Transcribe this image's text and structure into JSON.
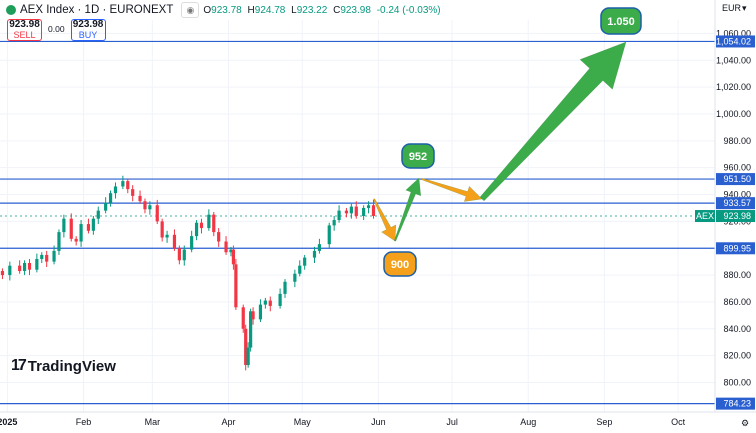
{
  "header": {
    "symbol": "AEX Index · 1D · EURONEXT",
    "ohlc": [
      {
        "k": "O",
        "v": "923.78"
      },
      {
        "k": "H",
        "v": "924.78"
      },
      {
        "k": "L",
        "v": "923.22"
      },
      {
        "k": "C",
        "v": "923.98"
      }
    ],
    "change": "-0.24 (-0.03%)",
    "sell_price": "923.98",
    "sell_label": "SELL",
    "spread": "0.00",
    "buy_price": "923.98",
    "buy_label": "BUY",
    "currency": "EUR",
    "logo_text": "TradingView"
  },
  "colors": {
    "up": "#089981",
    "down": "#f23645",
    "level_line": "#2a5fd0",
    "green_arrow": "#3cab4a",
    "orange_arrow": "#f5a01a"
  },
  "chart_data": {
    "type": "candlestick",
    "symbol": "AEX",
    "ylim": [
      778,
      1070
    ],
    "y_ticks": [
      800,
      820,
      840,
      860,
      880,
      900,
      920,
      940,
      960,
      980,
      1000,
      1020,
      1040,
      1060
    ],
    "y_tick_labels": [
      "800.00",
      "820.00",
      "840.00",
      "860.00",
      "880.00",
      "900.00",
      "920.00",
      "940.00",
      "960.00",
      "980.00",
      "1,000.00",
      "1,020.00",
      "1,040.00",
      "1,060.00"
    ],
    "x_ticks": [
      "2025",
      "Feb",
      "Mar",
      "Apr",
      "May",
      "Jun",
      "Jul",
      "Aug",
      "Sep",
      "Oct"
    ],
    "x_tick_dates": [
      "2025-01-01",
      "2025-02-01",
      "2025-03-01",
      "2025-04-01",
      "2025-05-01",
      "2025-06-01",
      "2025-07-01",
      "2025-08-01",
      "2025-09-01",
      "2025-10-01"
    ],
    "x_range": [
      "2024-12-29",
      "2025-10-16"
    ],
    "horizontal_levels": [
      {
        "value": 1054.02,
        "label": "1,054.02"
      },
      {
        "value": 951.5,
        "label": "951.50"
      },
      {
        "value": 933.57,
        "label": "933.57"
      },
      {
        "value": 899.95,
        "label": "899.95"
      },
      {
        "value": 784.23,
        "label": "784.23"
      }
    ],
    "current_price": {
      "name": "AEX",
      "value": 923.98,
      "label": "923.98"
    },
    "closes": [
      {
        "d": "2024-12-30",
        "c": 880
      },
      {
        "d": "2025-01-02",
        "c": 887
      },
      {
        "d": "2025-01-06",
        "c": 883
      },
      {
        "d": "2025-01-08",
        "c": 889
      },
      {
        "d": "2025-01-10",
        "c": 884
      },
      {
        "d": "2025-01-13",
        "c": 892
      },
      {
        "d": "2025-01-15",
        "c": 895
      },
      {
        "d": "2025-01-17",
        "c": 890
      },
      {
        "d": "2025-01-20",
        "c": 898
      },
      {
        "d": "2025-01-22",
        "c": 912
      },
      {
        "d": "2025-01-24",
        "c": 922
      },
      {
        "d": "2025-01-27",
        "c": 907
      },
      {
        "d": "2025-01-29",
        "c": 905
      },
      {
        "d": "2025-01-31",
        "c": 918
      },
      {
        "d": "2025-02-03",
        "c": 913
      },
      {
        "d": "2025-02-05",
        "c": 922
      },
      {
        "d": "2025-02-07",
        "c": 928
      },
      {
        "d": "2025-02-10",
        "c": 934
      },
      {
        "d": "2025-02-12",
        "c": 941
      },
      {
        "d": "2025-02-14",
        "c": 946
      },
      {
        "d": "2025-02-17",
        "c": 950
      },
      {
        "d": "2025-02-19",
        "c": 944
      },
      {
        "d": "2025-02-21",
        "c": 939
      },
      {
        "d": "2025-02-24",
        "c": 935
      },
      {
        "d": "2025-02-26",
        "c": 929
      },
      {
        "d": "2025-02-28",
        "c": 932
      },
      {
        "d": "2025-03-03",
        "c": 920
      },
      {
        "d": "2025-03-05",
        "c": 908
      },
      {
        "d": "2025-03-07",
        "c": 910
      },
      {
        "d": "2025-03-10",
        "c": 900
      },
      {
        "d": "2025-03-12",
        "c": 891
      },
      {
        "d": "2025-03-14",
        "c": 899
      },
      {
        "d": "2025-03-17",
        "c": 909
      },
      {
        "d": "2025-03-19",
        "c": 919
      },
      {
        "d": "2025-03-21",
        "c": 915
      },
      {
        "d": "2025-03-24",
        "c": 925
      },
      {
        "d": "2025-03-26",
        "c": 912
      },
      {
        "d": "2025-03-28",
        "c": 905
      },
      {
        "d": "2025-03-31",
        "c": 897
      },
      {
        "d": "2025-04-02",
        "c": 899
      },
      {
        "d": "2025-04-03",
        "c": 888
      },
      {
        "d": "2025-04-04",
        "c": 856
      },
      {
        "d": "2025-04-07",
        "c": 840
      },
      {
        "d": "2025-04-08",
        "c": 813
      },
      {
        "d": "2025-04-09",
        "c": 826
      },
      {
        "d": "2025-04-10",
        "c": 853
      },
      {
        "d": "2025-04-11",
        "c": 847
      },
      {
        "d": "2025-04-14",
        "c": 858
      },
      {
        "d": "2025-04-16",
        "c": 861
      },
      {
        "d": "2025-04-18",
        "c": 857
      },
      {
        "d": "2025-04-22",
        "c": 866
      },
      {
        "d": "2025-04-24",
        "c": 875
      },
      {
        "d": "2025-04-28",
        "c": 881
      },
      {
        "d": "2025-04-30",
        "c": 887
      },
      {
        "d": "2025-05-02",
        "c": 893
      },
      {
        "d": "2025-05-06",
        "c": 898
      },
      {
        "d": "2025-05-08",
        "c": 903
      },
      {
        "d": "2025-05-12",
        "c": 917
      },
      {
        "d": "2025-05-14",
        "c": 921
      },
      {
        "d": "2025-05-16",
        "c": 928
      },
      {
        "d": "2025-05-19",
        "c": 926
      },
      {
        "d": "2025-05-21",
        "c": 931
      },
      {
        "d": "2025-05-23",
        "c": 924
      },
      {
        "d": "2025-05-26",
        "c": 930
      },
      {
        "d": "2025-05-28",
        "c": 932
      },
      {
        "d": "2025-05-30",
        "c": 924
      }
    ],
    "annotations": [
      {
        "label": "952",
        "color": "green"
      },
      {
        "label": "900",
        "color": "orange"
      },
      {
        "label": "1.050",
        "color": "green"
      }
    ]
  }
}
